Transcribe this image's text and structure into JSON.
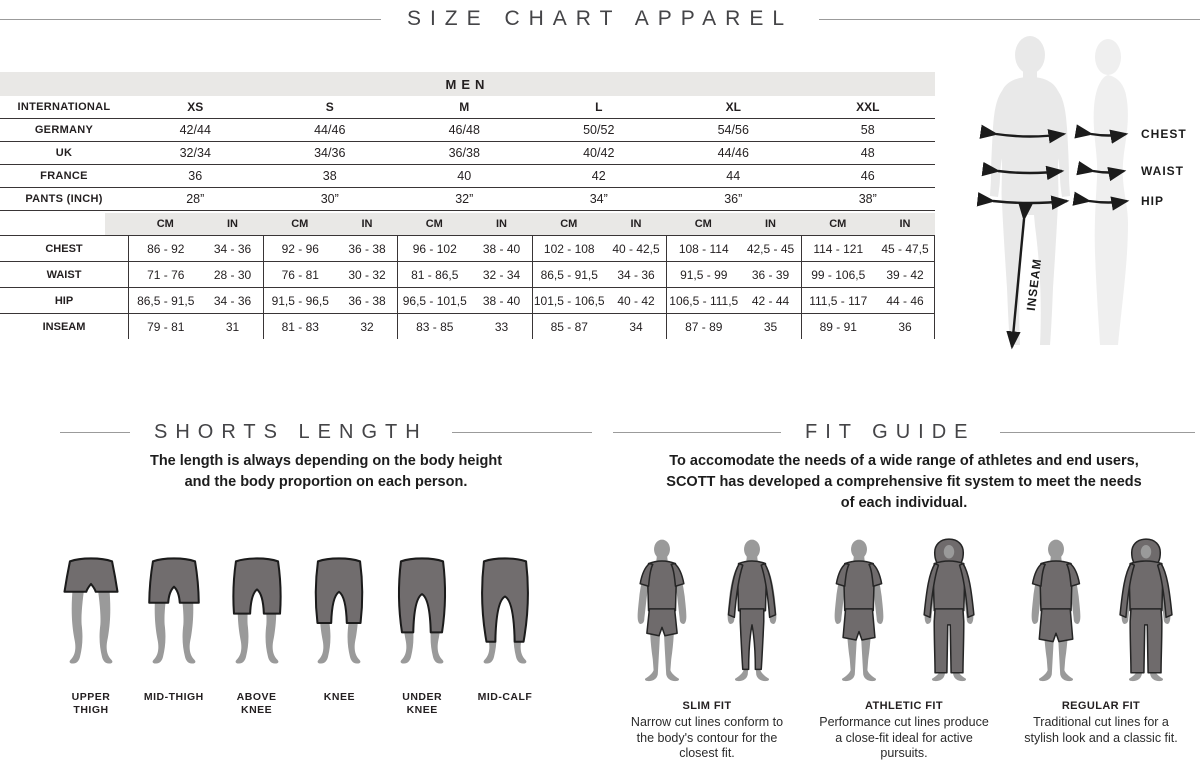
{
  "page_title": "SIZE CHART APPAREL",
  "colors": {
    "band_gray": "#e9e8e6",
    "text_dark": "#231f20",
    "silhouette_light": "#e9e9e9",
    "figure_gray": "#9a9a9a",
    "garment_gray": "#6f6b6c"
  },
  "size_table": {
    "gender_header": "MEN",
    "unit_headers": {
      "cm": "CM",
      "in": "IN"
    },
    "sizing_rows": [
      {
        "label": "INTERNATIONAL",
        "values": [
          "XS",
          "S",
          "M",
          "L",
          "XL",
          "XXL"
        ]
      },
      {
        "label": "GERMANY",
        "values": [
          "42/44",
          "44/46",
          "46/48",
          "50/52",
          "54/56",
          "58"
        ]
      },
      {
        "label": "UK",
        "values": [
          "32/34",
          "34/36",
          "36/38",
          "40/42",
          "44/46",
          "48"
        ]
      },
      {
        "label": "FRANCE",
        "values": [
          "36",
          "38",
          "40",
          "42",
          "44",
          "46"
        ]
      },
      {
        "label": "PANTS (INCH)",
        "values": [
          "28”",
          "30”",
          "32”",
          "34”",
          "36”",
          "38”"
        ]
      }
    ],
    "measurement_rows": [
      {
        "label": "CHEST",
        "cells": [
          {
            "cm": "86 - 92",
            "in": "34 - 36"
          },
          {
            "cm": "92 - 96",
            "in": "36 - 38"
          },
          {
            "cm": "96 - 102",
            "in": "38 - 40"
          },
          {
            "cm": "102 - 108",
            "in": "40 - 42,5"
          },
          {
            "cm": "108 - 114",
            "in": "42,5 - 45"
          },
          {
            "cm": "114 - 121",
            "in": "45 - 47,5"
          }
        ]
      },
      {
        "label": "WAIST",
        "cells": [
          {
            "cm": "71 - 76",
            "in": "28 - 30"
          },
          {
            "cm": "76 - 81",
            "in": "30 - 32"
          },
          {
            "cm": "81 - 86,5",
            "in": "32 - 34"
          },
          {
            "cm": "86,5 - 91,5",
            "in": "34 - 36"
          },
          {
            "cm": "91,5 - 99",
            "in": "36 - 39"
          },
          {
            "cm": "99 - 106,5",
            "in": "39 - 42"
          }
        ]
      },
      {
        "label": "HIP",
        "cells": [
          {
            "cm": "86,5 - 91,5",
            "in": "34 - 36"
          },
          {
            "cm": "91,5 - 96,5",
            "in": "36 - 38"
          },
          {
            "cm": "96,5 - 101,5",
            "in": "38 - 40"
          },
          {
            "cm": "101,5 - 106,5",
            "in": "40 - 42"
          },
          {
            "cm": "106,5 - 111,5",
            "in": "42 - 44"
          },
          {
            "cm": "111,5 - 117",
            "in": "44 - 46"
          }
        ]
      },
      {
        "label": "INSEAM",
        "cells": [
          {
            "cm": "79 - 81",
            "in": "31"
          },
          {
            "cm": "81 - 83",
            "in": "32"
          },
          {
            "cm": "83 - 85",
            "in": "33"
          },
          {
            "cm": "85 - 87",
            "in": "34"
          },
          {
            "cm": "87 - 89",
            "in": "35"
          },
          {
            "cm": "89 - 91",
            "in": "36"
          }
        ]
      }
    ]
  },
  "body_diagram": {
    "labels": {
      "chest": "CHEST",
      "waist": "WAIST",
      "hip": "HIP",
      "inseam": "INSEAM"
    }
  },
  "shorts_section": {
    "title": "SHORTS LENGTH",
    "description_lines": [
      "The length is always depending on the body height",
      "and the body proportion on each person."
    ],
    "items": [
      {
        "label": "UPPER THIGH"
      },
      {
        "label": "MID-THIGH"
      },
      {
        "label": "ABOVE KNEE"
      },
      {
        "label": "KNEE"
      },
      {
        "label": "UNDER KNEE"
      },
      {
        "label": "MID-CALF"
      }
    ]
  },
  "fit_section": {
    "title": "FIT GUIDE",
    "description_lines": [
      "To accomodate the needs of a wide range of athletes and end users,",
      "SCOTT has developed a comprehensive fit system to meet the needs",
      "of each individual."
    ],
    "fits": [
      {
        "name": "SLIM FIT",
        "description": "Narrow cut lines conform to the body's contour for the closest fit."
      },
      {
        "name": "ATHLETIC FIT",
        "description": "Performance cut lines produce a close-fit ideal for active pursuits."
      },
      {
        "name": "REGULAR FIT",
        "description": "Traditional cut lines for a stylish look and a classic fit."
      }
    ]
  }
}
